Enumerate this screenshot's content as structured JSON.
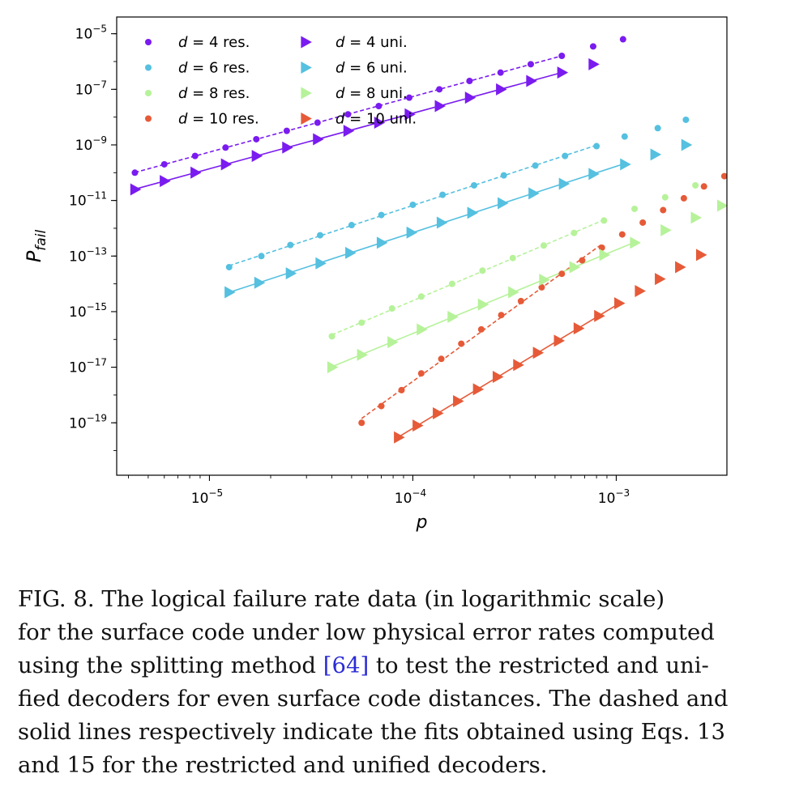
{
  "chart_data": {
    "type": "scatter",
    "title": "",
    "xlabel": "p",
    "ylabel_base": "P",
    "ylabel_sub": "fail",
    "xscale": "log",
    "yscale": "log",
    "xlim": [
      3.5e-06,
      0.0035
    ],
    "ylim": [
      1.3e-21,
      4e-05
    ],
    "grid": false,
    "legend_position": "top-left",
    "x_ticks": [
      {
        "value": 1e-05,
        "base": "10",
        "exp": "−5"
      },
      {
        "value": 0.0001,
        "base": "10",
        "exp": "−4"
      },
      {
        "value": 0.001,
        "base": "10",
        "exp": "−3"
      }
    ],
    "y_ticks": [
      {
        "value": 1e-05,
        "base": "10",
        "exp": "−5"
      },
      {
        "value": 1e-07,
        "base": "10",
        "exp": "−7"
      },
      {
        "value": 1e-09,
        "base": "10",
        "exp": "−9"
      },
      {
        "value": 1e-11,
        "base": "10",
        "exp": "−11"
      },
      {
        "value": 1e-13,
        "base": "10",
        "exp": "−13"
      },
      {
        "value": 1e-15,
        "base": "10",
        "exp": "−15"
      },
      {
        "value": 1e-17,
        "base": "10",
        "exp": "−17"
      },
      {
        "value": 1e-19,
        "base": "10",
        "exp": "−19"
      }
    ],
    "series": [
      {
        "name": "d = 4 res.",
        "d": "4",
        "kind": "res.",
        "decoder": "restricted",
        "marker": "circle",
        "line": "dashed",
        "color": "#7a1bf0",
        "x": [
          4.3e-06,
          6e-06,
          8.5e-06,
          1.2e-05,
          1.7e-05,
          2.4e-05,
          3.4e-05,
          4.8e-05,
          6.8e-05,
          9.6e-05,
          0.000135,
          0.00019,
          0.00027,
          0.00038,
          0.00054,
          0.00077,
          0.00108
        ],
        "y": [
          1e-10,
          2e-10,
          4e-10,
          8e-10,
          1.6e-09,
          3.2e-09,
          6.3e-09,
          1.26e-08,
          2.5e-08,
          5e-08,
          1e-07,
          2e-07,
          4e-07,
          8e-07,
          1.6e-06,
          3.5e-06,
          6.3e-06
        ],
        "fit_n": 15
      },
      {
        "name": "d = 6 res.",
        "d": "6",
        "kind": "res.",
        "decoder": "restricted",
        "marker": "circle",
        "line": "dashed",
        "color": "#55c0e0",
        "x": [
          1.25e-05,
          1.8e-05,
          2.5e-05,
          3.5e-05,
          5e-05,
          7e-05,
          0.0001,
          0.00014,
          0.0002,
          0.00028,
          0.0004,
          0.00056,
          0.0008,
          0.0011,
          0.0016,
          0.0022
        ],
        "y": [
          4e-14,
          1e-13,
          2.5e-13,
          5.6e-13,
          1.3e-12,
          3e-12,
          7e-12,
          1.6e-11,
          3.5e-11,
          8e-11,
          1.8e-10,
          4e-10,
          9e-10,
          2e-09,
          4e-09,
          8e-09
        ],
        "fit_n": 13
      },
      {
        "name": "d = 8 res.",
        "d": "8",
        "kind": "res.",
        "decoder": "restricted",
        "marker": "circle",
        "line": "dashed",
        "color": "#b6f299",
        "x": [
          4e-05,
          5.6e-05,
          7.9e-05,
          0.00011,
          0.000156,
          0.00022,
          0.00031,
          0.00044,
          0.00062,
          0.00087,
          0.00123,
          0.00174,
          0.00245
        ],
        "y": [
          1.3e-16,
          4e-16,
          1.3e-15,
          3.5e-15,
          1e-14,
          3e-14,
          8.5e-14,
          2.4e-13,
          6.8e-13,
          1.9e-12,
          5e-12,
          1.3e-11,
          3.5e-11
        ],
        "fit_n": 10
      },
      {
        "name": "d = 10 res.",
        "d": "10",
        "kind": "res.",
        "decoder": "restricted",
        "marker": "circle",
        "line": "dashed",
        "color": "#e65a38",
        "x": [
          5.6e-05,
          7e-05,
          8.8e-05,
          0.00011,
          0.000138,
          0.000173,
          0.000217,
          0.000272,
          0.00034,
          0.00043,
          0.00054,
          0.00068,
          0.00085,
          0.00107,
          0.00135,
          0.0017,
          0.00215,
          0.0027,
          0.0034
        ],
        "y": [
          1e-19,
          4e-19,
          1.5e-18,
          6e-18,
          2e-17,
          7e-17,
          2.3e-16,
          7.5e-16,
          2.4e-15,
          7.5e-15,
          2.3e-14,
          7e-14,
          2e-13,
          6e-13,
          1.6e-12,
          4.5e-12,
          1.2e-11,
          3.2e-11,
          7.5e-11
        ],
        "fit_n": 13
      },
      {
        "name": "d = 4 uni.",
        "d": "4",
        "kind": "uni.",
        "decoder": "unified",
        "marker": "triangle-right",
        "line": "solid",
        "color": "#7a1bf0",
        "x": [
          4.3e-06,
          6e-06,
          8.5e-06,
          1.2e-05,
          1.7e-05,
          2.4e-05,
          3.4e-05,
          4.8e-05,
          6.8e-05,
          9.6e-05,
          0.000135,
          0.00019,
          0.00027,
          0.00038,
          0.00054,
          0.00077
        ],
        "y": [
          2.5e-11,
          5e-11,
          1e-10,
          2e-10,
          4e-10,
          8e-10,
          1.6e-09,
          3.2e-09,
          6.3e-09,
          1.26e-08,
          2.5e-08,
          5e-08,
          1e-07,
          2e-07,
          4e-07,
          8e-07
        ],
        "fit_n": 15
      },
      {
        "name": "d = 6 uni.",
        "d": "6",
        "kind": "uni.",
        "decoder": "unified",
        "marker": "triangle-right",
        "line": "solid",
        "color": "#55c0e0",
        "x": [
          1.25e-05,
          1.75e-05,
          2.5e-05,
          3.5e-05,
          4.9e-05,
          7e-05,
          9.8e-05,
          0.000138,
          0.000195,
          0.000275,
          0.00039,
          0.00055,
          0.00077,
          0.0011,
          0.00155,
          0.0022
        ],
        "y": [
          5e-15,
          1.1e-14,
          2.4e-14,
          5.5e-14,
          1.3e-13,
          3e-13,
          7e-13,
          1.6e-12,
          3.6e-12,
          8e-12,
          1.8e-11,
          4e-11,
          9e-11,
          2e-10,
          4.5e-10,
          1e-09
        ],
        "fit_n": 14
      },
      {
        "name": "d = 8 uni.",
        "d": "8",
        "kind": "uni.",
        "decoder": "unified",
        "marker": "triangle-right",
        "line": "solid",
        "color": "#b6f299",
        "x": [
          4e-05,
          5.6e-05,
          7.9e-05,
          0.00011,
          0.000156,
          0.00022,
          0.00031,
          0.00044,
          0.00062,
          0.00087,
          0.00123,
          0.00174,
          0.00245,
          0.0033
        ],
        "y": [
          1e-17,
          2.8e-17,
          8e-17,
          2.3e-16,
          6.5e-16,
          1.8e-15,
          5e-15,
          1.4e-14,
          4e-14,
          1.1e-13,
          3e-13,
          8.5e-13,
          2.4e-12,
          6.5e-12
        ],
        "fit_n": 11
      },
      {
        "name": "d = 10 uni.",
        "d": "10",
        "kind": "uni.",
        "decoder": "unified",
        "marker": "triangle-right",
        "line": "solid",
        "color": "#e65a38",
        "x": [
          8.5e-05,
          0.000105,
          0.000132,
          0.000166,
          0.000208,
          0.00026,
          0.000328,
          0.00041,
          0.00052,
          0.00065,
          0.00082,
          0.00103,
          0.0013,
          0.00163,
          0.00205,
          0.0026
        ],
        "y": [
          3e-20,
          8e-20,
          2.2e-19,
          6e-19,
          1.6e-18,
          4.5e-18,
          1.2e-17,
          3.3e-17,
          9e-17,
          2.5e-16,
          7e-16,
          2e-15,
          5.5e-15,
          1.5e-14,
          4e-14,
          1.1e-13
        ],
        "fit_n": 12
      }
    ]
  },
  "caption": {
    "lines": [
      "FIG. 8.  The logical failure rate data (in logarithmic scale)",
      "for the surface code under low physical error rates computed",
      [
        "using the splitting method ",
        "[64]",
        " to test the restricted and uni-"
      ],
      "fied decoders for even surface code distances. The dashed and",
      "solid lines respectively indicate the fits obtained using Eqs. 13",
      "and 15 for the restricted and unified decoders."
    ],
    "ref_color": "#2b2bd6"
  }
}
